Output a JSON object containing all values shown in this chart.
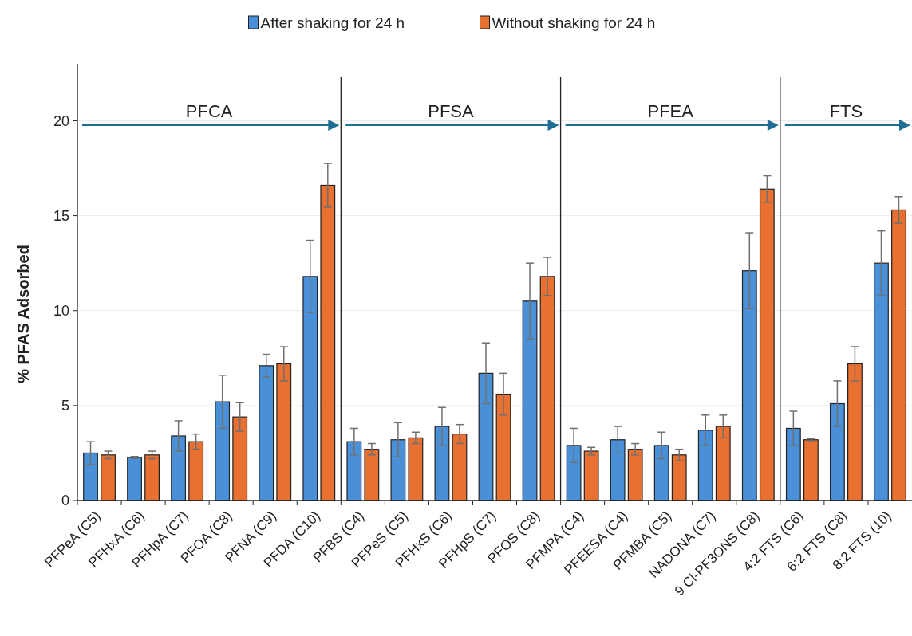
{
  "chart_data": {
    "type": "bar",
    "ylabel": "% PFAS Adsorbed",
    "categories": [
      "PFPeA (C5)",
      "PFHxA (C6)",
      "PFHpA (C7)",
      "PFOA (C8)",
      "PFNA (C9)",
      "PFDA (C10)",
      "PFBS (C4)",
      "PFPeS (C5)",
      "PFHxS (C6)",
      "PFHpS (C7)",
      "PFOS (C8)",
      "PFMPA (C4)",
      "PFEESA (C4)",
      "PFMBA (C5)",
      "NADONA (C7)",
      "9 Cl-PF3ONS (C8)",
      "4:2 FTS (C6)",
      "6:2 FTS (C8)",
      "8:2 FTS (10)"
    ],
    "series": [
      {
        "name": "After shaking for 24 h",
        "color": "#4a90d9",
        "values": [
          2.5,
          2.27,
          3.4,
          5.2,
          7.1,
          11.8,
          3.1,
          3.2,
          3.9,
          6.7,
          10.5,
          2.9,
          3.2,
          2.9,
          3.7,
          12.1,
          3.8,
          5.1,
          12.5
        ],
        "errors": [
          0.6,
          0.05,
          0.8,
          1.4,
          0.6,
          1.9,
          0.7,
          0.9,
          1.0,
          1.6,
          2.0,
          0.9,
          0.7,
          0.7,
          0.8,
          2.0,
          0.9,
          1.2,
          1.7
        ]
      },
      {
        "name": "Without shaking for 24 h",
        "color": "#e87030",
        "values": [
          2.4,
          2.4,
          3.1,
          4.4,
          7.2,
          16.6,
          2.7,
          3.3,
          3.5,
          5.6,
          11.8,
          2.6,
          2.7,
          2.4,
          3.9,
          16.4,
          3.2,
          7.2,
          15.3
        ],
        "errors": [
          0.2,
          0.2,
          0.4,
          0.75,
          0.9,
          1.15,
          0.3,
          0.3,
          0.5,
          1.1,
          1.0,
          0.2,
          0.3,
          0.3,
          0.6,
          0.7,
          0.05,
          0.9,
          0.7
        ]
      }
    ],
    "ylim": [
      0,
      23
    ],
    "yticks": [
      0,
      5,
      10,
      15,
      20
    ],
    "grid": "y",
    "legend": "top",
    "annotations": [
      "PFCA",
      "PFSA",
      "PFEA",
      "FTS"
    ]
  }
}
